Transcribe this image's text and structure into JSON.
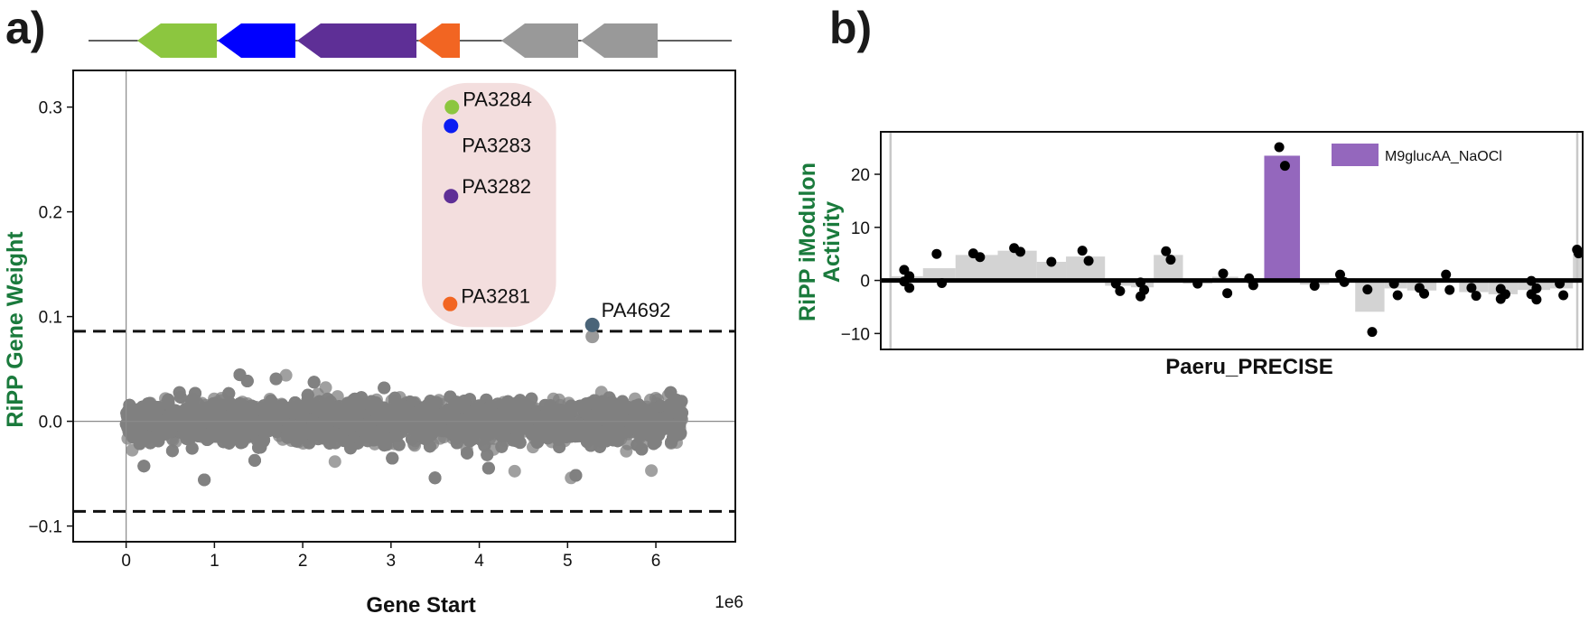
{
  "panel_labels": {
    "a": "a)",
    "b": "b)"
  },
  "chart_data": [
    {
      "type": "scatter",
      "panel": "a",
      "xlabel": "Gene Start",
      "ylabel": "RiPP Gene Weight",
      "x_offset_text": "1e6",
      "xlim": [
        -0.6,
        6.9
      ],
      "ylim": [
        -0.115,
        0.335
      ],
      "xticks": [
        0,
        1,
        2,
        3,
        4,
        5,
        6
      ],
      "yticks": [
        -0.1,
        0.0,
        0.1,
        0.2,
        0.3
      ],
      "ytick_labels": [
        "−0.1",
        "0.0",
        "0.1",
        "0.2",
        "0.3"
      ],
      "threshold": 0.086,
      "background_cloud": {
        "x_range": [
          0.0,
          6.3
        ],
        "count": 5500,
        "color": "#808080"
      },
      "highlighted_genes": [
        {
          "name": "PA3284",
          "x": 3.69,
          "y": 0.3,
          "color": "#8cc63f"
        },
        {
          "name": "PA3283",
          "x": 3.68,
          "y": 0.282,
          "color": "#0b1cf2"
        },
        {
          "name": "PA3282",
          "x": 3.68,
          "y": 0.215,
          "color": "#5e2f96"
        },
        {
          "name": "PA3281",
          "x": 3.67,
          "y": 0.112,
          "color": "#f26522"
        },
        {
          "name": "PA4692",
          "x": 5.28,
          "y": 0.092,
          "color": "#4a6478"
        }
      ],
      "extra_points": [
        {
          "x": 5.28,
          "y": 0.081,
          "color": "#9a9a9a"
        }
      ],
      "highlight_region_color": "#f3dede",
      "operon": [
        {
          "color": "#8cc63f",
          "dir": "left"
        },
        {
          "color": "#0000ff",
          "dir": "left"
        },
        {
          "color": "#5e2f96",
          "dir": "left"
        },
        {
          "color": "#f26522",
          "dir": "left"
        },
        {
          "color": "#999999",
          "dir": "left"
        },
        {
          "color": "#999999",
          "dir": "left"
        }
      ]
    },
    {
      "type": "bar",
      "panel": "b",
      "xlabel": "Paeru_PRECISE",
      "ylabel": "RiPP iModulon\nActivity",
      "ylim": [
        -13,
        28
      ],
      "yticks": [
        -10,
        0,
        10,
        20
      ],
      "ytick_labels": [
        "−10",
        "0",
        "10",
        "20"
      ],
      "xlim": [
        -0.3,
        21.3
      ],
      "highlight_color": "#9467bd",
      "bar_color": "#d3d3d3",
      "legend": {
        "label": "M9glucAA_NaOCl"
      },
      "bars": [
        {
          "x0": 0.0,
          "x1": 1.0,
          "value": 0.8,
          "points": [
            2.0,
            0.8,
            -0.2,
            -1.4
          ]
        },
        {
          "x0": 1.0,
          "x1": 2.0,
          "value": 2.3,
          "points": [
            5.0,
            -0.5
          ]
        },
        {
          "x0": 2.0,
          "x1": 3.3,
          "value": 4.8,
          "points": [
            5.1,
            4.4
          ]
        },
        {
          "x0": 3.3,
          "x1": 4.5,
          "value": 5.6,
          "points": [
            6.1,
            5.4
          ]
        },
        {
          "x0": 4.5,
          "x1": 5.4,
          "value": 3.5,
          "points": [
            3.5
          ]
        },
        {
          "x0": 5.4,
          "x1": 6.6,
          "value": 4.5,
          "points": [
            5.6,
            3.7
          ]
        },
        {
          "x0": 6.6,
          "x1": 7.4,
          "value": -1.0,
          "points": [
            -0.6,
            -2.0
          ]
        },
        {
          "x0": 7.4,
          "x1": 8.1,
          "value": -1.3,
          "points": [
            -0.4,
            -1.8,
            -3.0
          ]
        },
        {
          "x0": 8.1,
          "x1": 9.0,
          "value": 4.8,
          "points": [
            5.5,
            3.9
          ]
        },
        {
          "x0": 9.0,
          "x1": 9.9,
          "value": -0.6,
          "points": [
            -0.6
          ]
        },
        {
          "x0": 9.9,
          "x1": 10.7,
          "value": 0.7,
          "points": [
            1.3,
            -2.4
          ]
        },
        {
          "x0": 10.7,
          "x1": 11.5,
          "value": -0.2,
          "points": [
            0.4,
            -0.9
          ]
        },
        {
          "x0": 11.5,
          "x1": 12.6,
          "value": 23.5,
          "points": [
            25.1,
            21.6
          ],
          "highlight": true
        },
        {
          "x0": 12.6,
          "x1": 13.5,
          "value": -0.8,
          "points": [
            -1.0
          ]
        },
        {
          "x0": 13.5,
          "x1": 14.3,
          "value": 0.4,
          "points": [
            1.1,
            -0.3
          ]
        },
        {
          "x0": 14.3,
          "x1": 15.2,
          "value": -5.9,
          "points": [
            -1.7,
            -9.7
          ]
        },
        {
          "x0": 15.2,
          "x1": 15.9,
          "value": -1.5,
          "points": [
            -0.6,
            -2.8
          ]
        },
        {
          "x0": 15.9,
          "x1": 16.8,
          "value": -1.9,
          "points": [
            -1.4,
            -2.5
          ]
        },
        {
          "x0": 16.8,
          "x1": 17.5,
          "value": -0.4,
          "points": [
            1.1,
            -1.8
          ]
        },
        {
          "x0": 17.5,
          "x1": 18.4,
          "value": -2.2,
          "points": [
            -1.4,
            -2.9
          ]
        },
        {
          "x0": 18.4,
          "x1": 19.3,
          "value": -2.6,
          "points": [
            -1.6,
            -2.6,
            -3.5
          ]
        },
        {
          "x0": 19.3,
          "x1": 20.3,
          "value": -1.8,
          "points": [
            -0.1,
            -1.5,
            -2.6,
            -3.6
          ]
        },
        {
          "x0": 20.3,
          "x1": 21.0,
          "value": -1.5,
          "points": [
            -0.6,
            -2.8
          ]
        },
        {
          "x0": 21.0,
          "x1": 21.3,
          "value": 5.4,
          "points": [
            5.8,
            5.1
          ]
        }
      ]
    }
  ]
}
